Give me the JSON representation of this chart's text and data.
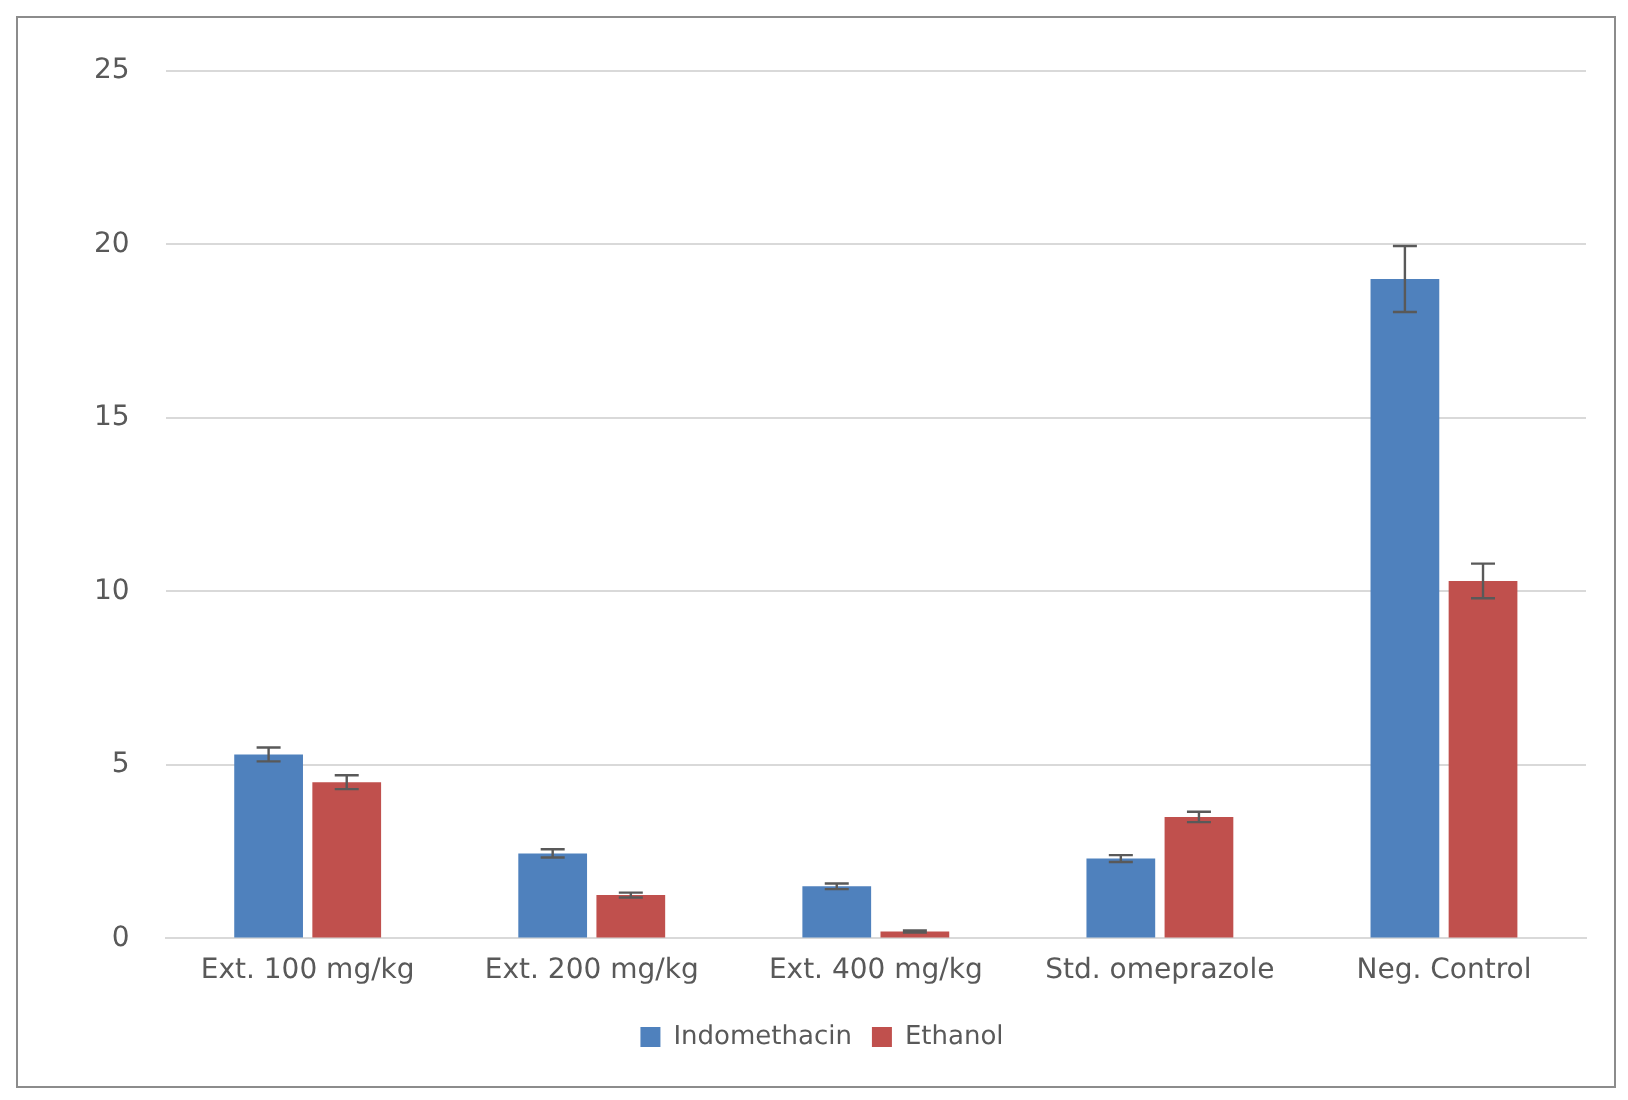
{
  "chart_data": {
    "type": "bar",
    "categories": [
      "Ext. 100 mg/kg",
      "Ext. 200 mg/kg",
      "Ext. 400 mg/kg",
      "Std. omeprazole",
      "Neg. Control"
    ],
    "series": [
      {
        "name": "Indomethacin",
        "color": "#4f81bd",
        "values": [
          5.3,
          2.45,
          1.5,
          2.3,
          19.0
        ],
        "errors": [
          0.2,
          0.12,
          0.08,
          0.1,
          0.95
        ]
      },
      {
        "name": "Ethanol",
        "color": "#c0504d",
        "values": [
          4.5,
          1.25,
          0.2,
          3.5,
          10.3
        ],
        "errors": [
          0.2,
          0.07,
          0.03,
          0.15,
          0.5
        ]
      }
    ],
    "ylim": [
      0,
      25
    ],
    "yticks": [
      0,
      5,
      10,
      15,
      20,
      25
    ],
    "grid": "y",
    "legend": "bottom"
  }
}
